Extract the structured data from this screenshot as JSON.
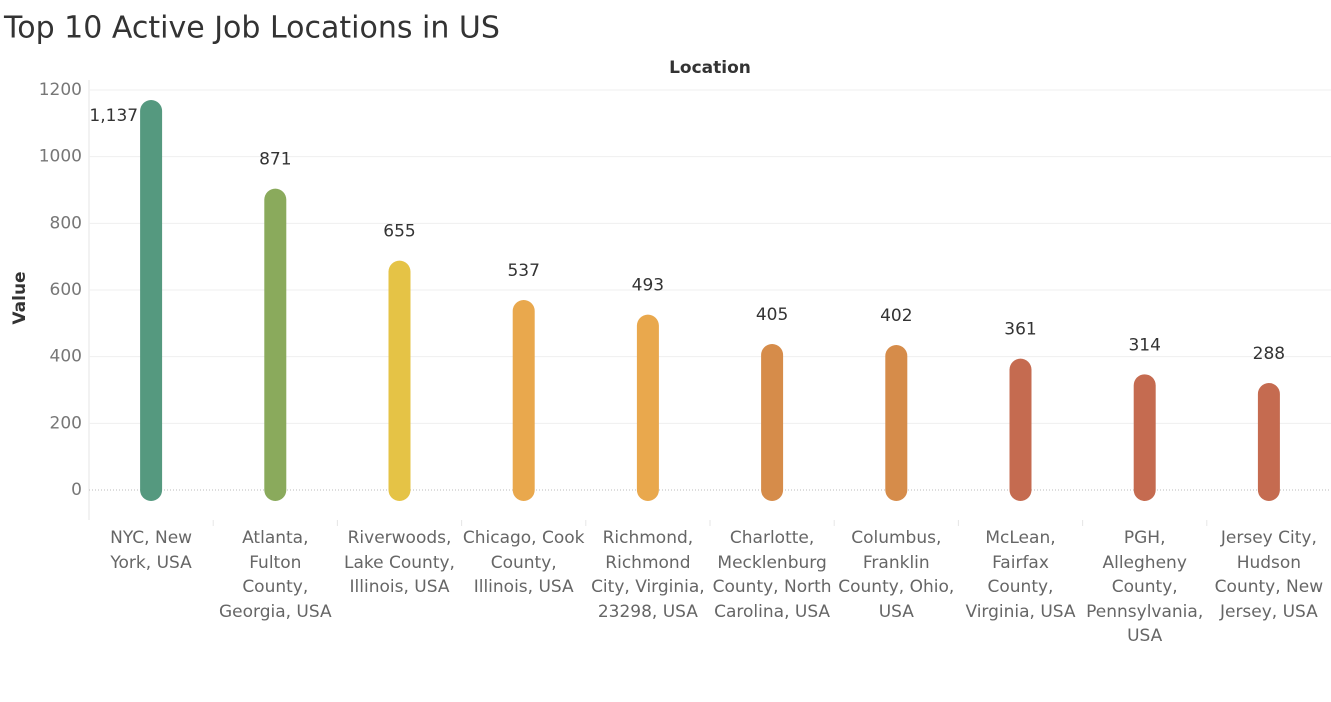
{
  "chart_data": {
    "type": "bar",
    "title": "Top 10 Active Job Locations in US",
    "x_header": "Location",
    "y_label": "Value",
    "categories": [
      "NYC, New York, USA",
      "Atlanta, Fulton County, Georgia, USA",
      "Riverwoods, Lake County, Illinois, USA",
      "Chicago, Cook County, Illinois, USA",
      "Richmond, Richmond City, Virginia, 23298, USA",
      "Charlotte, Mecklenburg County, North Carolina, USA",
      "Columbus, Franklin County, Ohio, USA",
      "McLean, Fairfax County, Virginia, USA",
      "PGH, Allegheny County, Pennsylvania, USA",
      "Jersey City, Hudson County, New Jersey, USA"
    ],
    "values": [
      1137,
      871,
      655,
      537,
      493,
      405,
      402,
      361,
      314,
      288
    ],
    "value_labels": [
      "1,137",
      "871",
      "655",
      "537",
      "493",
      "405",
      "402",
      "361",
      "314",
      "288"
    ],
    "colors": [
      "#55997f",
      "#8aaa5c",
      "#e5c346",
      "#e9a84d",
      "#e9a84d",
      "#d68c4a",
      "#d68c4a",
      "#c56b50",
      "#c56b50",
      "#c56b50"
    ],
    "ylim": [
      -90,
      1230
    ],
    "yticks": [
      0,
      200,
      400,
      600,
      800,
      1000,
      1200
    ],
    "grid": true
  }
}
